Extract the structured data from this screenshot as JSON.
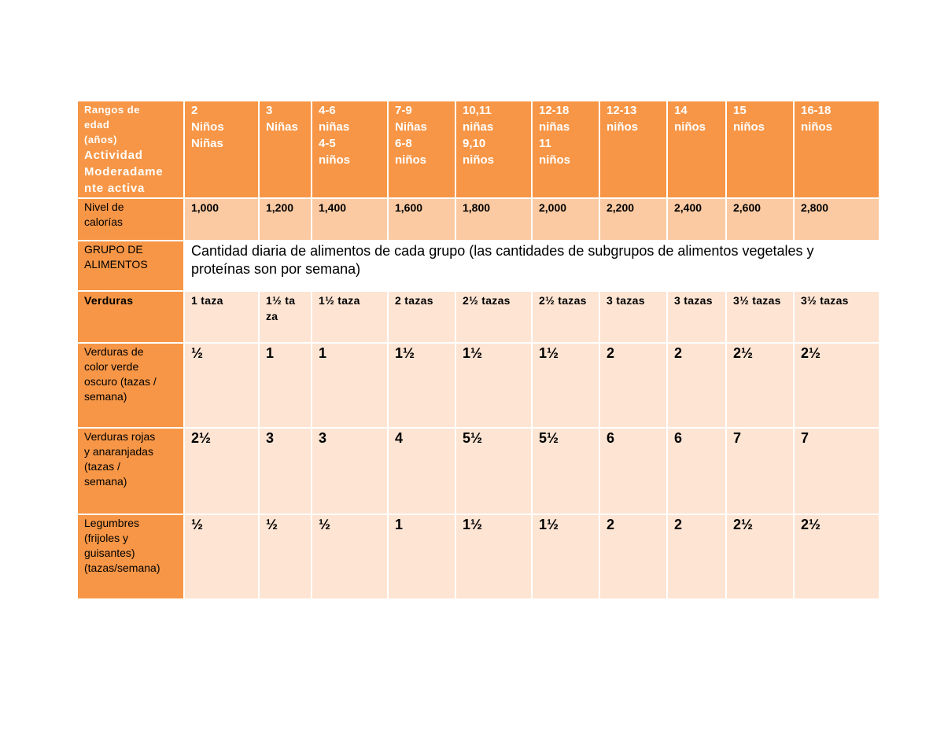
{
  "header": {
    "label_lines": [
      "Rangos de",
      "edad",
      "(años)"
    ],
    "label_big_lines": [
      "Actividad",
      "Moderadame",
      "nte activa"
    ],
    "columns": [
      {
        "lines": [
          "2",
          "Niños",
          "Niñas"
        ]
      },
      {
        "lines": [
          "3",
          "Niñas"
        ]
      },
      {
        "lines": [
          "4-6",
          "niñas",
          "4-5",
          "niños"
        ]
      },
      {
        "lines": [
          "7-9",
          "Niñas",
          "6-8",
          "niños"
        ]
      },
      {
        "lines": [
          "10,11",
          "niñas",
          "9,10",
          "niños"
        ]
      },
      {
        "lines": [
          "12-18",
          "niñas",
          "11",
          "niños"
        ]
      },
      {
        "lines": [
          "12-13",
          "niños"
        ]
      },
      {
        "lines": [
          "14",
          "niños"
        ]
      },
      {
        "lines": [
          "15",
          "niños"
        ]
      },
      {
        "lines": [
          "16-18",
          "niños"
        ]
      }
    ]
  },
  "calories": {
    "label_lines": [
      "Nivel de",
      "calorías"
    ],
    "values": [
      "1,000",
      "1,200",
      "1,400",
      "1,600",
      "1,800",
      "2,000",
      "2,200",
      "2,400",
      "2,600",
      "2,800"
    ]
  },
  "group": {
    "label_lines": [
      "GRUPO DE",
      "ALIMENTOS"
    ],
    "description": "Cantidad diaria de alimentos de cada grupo (las cantidades de subgrupos de alimentos vegetales y proteínas son por semana)"
  },
  "rows": [
    {
      "label_lines": [
        "Verduras"
      ],
      "values": [
        [
          "1  taza"
        ],
        [
          "1½ ta",
          "za"
        ],
        [
          "1½ taza"
        ],
        [
          "2 tazas"
        ],
        [
          "2½ tazas"
        ],
        [
          "2½ tazas"
        ],
        [
          "3 tazas"
        ],
        [
          "3 tazas"
        ],
        [
          "3½ tazas"
        ],
        [
          "3½ tazas"
        ]
      ]
    },
    {
      "label_lines": [
        "Verduras de",
        "color verde",
        "oscuro (tazas /",
        "semana)"
      ],
      "values": [
        [
          "½"
        ],
        [
          "1"
        ],
        [
          "1"
        ],
        [
          "1½"
        ],
        [
          "1½"
        ],
        [
          "1½"
        ],
        [
          "2"
        ],
        [
          "2"
        ],
        [
          "2½"
        ],
        [
          "2½"
        ]
      ]
    },
    {
      "label_lines": [
        "Verduras rojas",
        "y anaranjadas",
        "(tazas /",
        "semana)"
      ],
      "values": [
        [
          "2½"
        ],
        [
          "3"
        ],
        [
          "3"
        ],
        [
          "4"
        ],
        [
          "5½"
        ],
        [
          "5½"
        ],
        [
          "6"
        ],
        [
          "6"
        ],
        [
          "7"
        ],
        [
          "7"
        ]
      ]
    },
    {
      "label_lines": [
        "Legumbres",
        "(frijoles y",
        "guisantes)",
        "(tazas/semana)"
      ],
      "values": [
        [
          "½"
        ],
        [
          "½"
        ],
        [
          "½"
        ],
        [
          "1"
        ],
        [
          "1½"
        ],
        [
          "1½"
        ],
        [
          "2"
        ],
        [
          "2"
        ],
        [
          "2½"
        ],
        [
          "2½"
        ]
      ]
    }
  ]
}
